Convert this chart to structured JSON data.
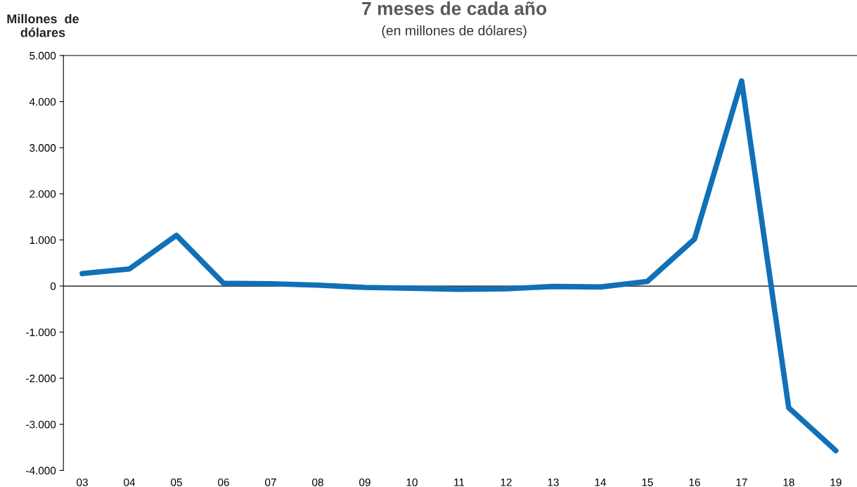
{
  "chart_data": {
    "type": "line",
    "title": "7 meses de cada año",
    "subtitle": "(en millones de dólares)",
    "ylabel": "Millones  de\ndólares",
    "categories": [
      "03",
      "04",
      "05",
      "06",
      "07",
      "08",
      "09",
      "10",
      "11",
      "12",
      "13",
      "14",
      "15",
      "16",
      "17",
      "18",
      "19"
    ],
    "series": [
      {
        "color": "#1070b8",
        "values": [
          270,
          370,
          1100,
          60,
          50,
          20,
          -30,
          -50,
          -70,
          -60,
          -10,
          -20,
          100,
          1020,
          4450,
          -2640,
          -3570
        ]
      }
    ],
    "ylim": [
      -4000,
      5000
    ],
    "yticks": [
      {
        "value": -4000,
        "label": "-4.000"
      },
      {
        "value": -3000,
        "label": "-3.000"
      },
      {
        "value": -2000,
        "label": "-2.000"
      },
      {
        "value": -1000,
        "label": "-1.000"
      },
      0,
      {
        "value": 1000,
        "label": "1.000"
      },
      {
        "value": 2000,
        "label": "2.000"
      },
      {
        "value": 3000,
        "label": "3.000"
      },
      {
        "value": 4000,
        "label": "4.000"
      },
      {
        "value": 5000,
        "label": "5.000"
      }
    ],
    "ref_lines": [
      {
        "axis": "y",
        "value": 0,
        "color": "#000000"
      }
    ],
    "grid": false,
    "legend": false,
    "marker": "none",
    "line_style": "solid"
  }
}
